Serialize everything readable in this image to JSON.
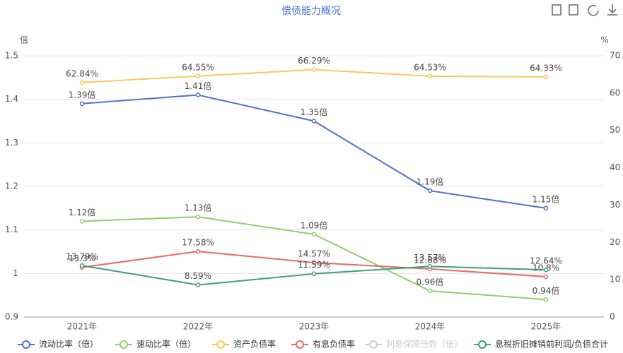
{
  "chart_data": {
    "type": "line",
    "title": "偿债能力概况",
    "y_unit": "倍",
    "y2_unit": "%",
    "categories": [
      "2021年",
      "2022年",
      "2023年",
      "2024年",
      "2025年"
    ],
    "ylim": [
      0.9,
      1.5
    ],
    "yticks": [
      0.9,
      1,
      1.1,
      1.2,
      1.3,
      1.4,
      1.5
    ],
    "y2lim": [
      0,
      70
    ],
    "y2ticks": [
      0,
      10,
      20,
      30,
      40,
      50,
      60,
      70
    ],
    "grid": true,
    "legend": "bottom",
    "series": [
      {
        "name": "流动比率（倍）",
        "color": "#5470c6",
        "values": [
          1.39,
          1.41,
          1.35,
          1.19,
          1.15
        ],
        "value_labels": [
          "1.39倍",
          "1.41倍",
          "1.35倍",
          "1.19倍",
          "1.15倍"
        ]
      },
      {
        "name": "速动比率（倍）",
        "color": "#91cc75",
        "values": [
          1.12,
          1.13,
          1.09,
          0.96,
          0.94
        ],
        "value_labels": [
          "1.12倍",
          "1.13倍",
          "1.09倍",
          "0.96倍",
          "0.94倍"
        ]
      },
      {
        "name": "资产负债率",
        "color": "#fac858",
        "axis": "y2",
        "values": [
          62.84,
          64.55,
          66.29,
          64.53,
          64.33
        ],
        "value_labels": [
          "62.84%",
          "64.55%",
          "66.29%",
          "64.53%",
          "64.33%"
        ]
      },
      {
        "name": "有息负债率",
        "color": "#ee6666",
        "axis": "y2",
        "values": [
          13.3,
          17.58,
          14.57,
          12.88,
          10.8
        ],
        "value_labels": [
          "13.3%",
          "17.58%",
          "14.57%",
          "12.88%",
          "10.8%"
        ]
      },
      {
        "name": "利息保障倍数（倍）",
        "color": "#cccccc",
        "visible": false
      },
      {
        "name": "息税折旧摊销前利润/负债合计",
        "color": "#3ba272",
        "axis": "y2",
        "values": [
          13.79,
          8.59,
          11.59,
          13.57,
          12.64
        ],
        "value_labels": [
          "13.79%",
          "8.59%",
          "11.59%",
          "13.57%",
          "12.64%"
        ]
      }
    ]
  }
}
